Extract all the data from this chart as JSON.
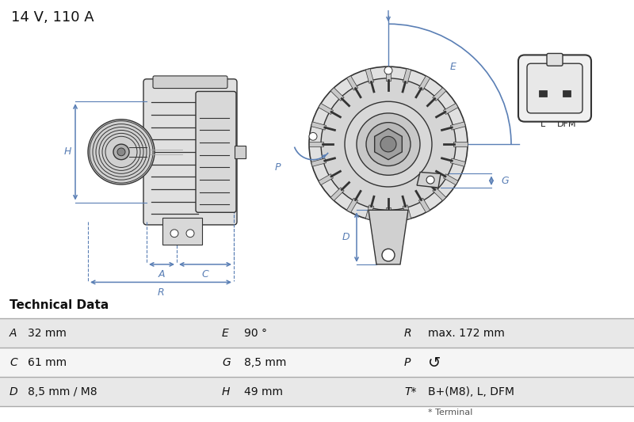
{
  "title": "14 V, 110 A",
  "title_fontsize": 13,
  "background_color": "#ffffff",
  "diagram_color": "#5a7fb5",
  "part_color": "#e8e8e8",
  "part_edge_color": "#333333",
  "table_header": "Technical Data",
  "table_rows": [
    [
      "A",
      "32 mm",
      "E",
      "90 °",
      "R",
      "max. 172 mm"
    ],
    [
      "C",
      "61 mm",
      "G",
      "8,5 mm",
      "P",
      "↺"
    ],
    [
      "D",
      "8,5 mm / M8",
      "H",
      "49 mm",
      "T*",
      "B+(M8), L, DFM"
    ]
  ],
  "table_note": "* Terminal",
  "label_color": "#5a7fb5",
  "row_bg_colors": [
    "#e8e8e8",
    "#f5f5f5",
    "#e8e8e8"
  ]
}
